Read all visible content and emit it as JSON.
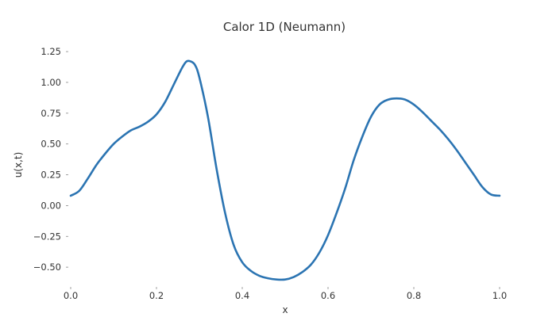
{
  "chart_data": {
    "type": "line",
    "title": "Calor 1D (Neumann)",
    "xlabel": "x",
    "ylabel": "u(x,t)",
    "xlim": [
      0.0,
      1.0
    ],
    "ylim": [
      -0.66,
      1.36
    ],
    "grid": false,
    "x_ticks": [
      {
        "value": 0.0,
        "label": "0.0"
      },
      {
        "value": 0.2,
        "label": "0.2"
      },
      {
        "value": 0.4,
        "label": "0.4"
      },
      {
        "value": 0.6,
        "label": "0.6"
      },
      {
        "value": 0.8,
        "label": "0.8"
      },
      {
        "value": 1.0,
        "label": "1.0"
      }
    ],
    "y_ticks": [
      {
        "value": -0.5,
        "label": "−0.50"
      },
      {
        "value": -0.25,
        "label": "−0.25"
      },
      {
        "value": 0.0,
        "label": "0.00"
      },
      {
        "value": 0.25,
        "label": "0.25"
      },
      {
        "value": 0.5,
        "label": "0.50"
      },
      {
        "value": 0.75,
        "label": "0.75"
      },
      {
        "value": 1.0,
        "label": "1.00"
      },
      {
        "value": 1.25,
        "label": "1.25"
      }
    ],
    "series": [
      {
        "color": "#2b74b2",
        "x": [
          0.0,
          0.02,
          0.04,
          0.06,
          0.08,
          0.1,
          0.12,
          0.14,
          0.16,
          0.18,
          0.2,
          0.22,
          0.24,
          0.26,
          0.27,
          0.28,
          0.29,
          0.3,
          0.32,
          0.34,
          0.36,
          0.38,
          0.4,
          0.42,
          0.44,
          0.46,
          0.48,
          0.5,
          0.52,
          0.54,
          0.56,
          0.58,
          0.6,
          0.62,
          0.64,
          0.66,
          0.68,
          0.7,
          0.72,
          0.74,
          0.76,
          0.78,
          0.8,
          0.82,
          0.84,
          0.86,
          0.88,
          0.9,
          0.92,
          0.94,
          0.96,
          0.98,
          1.0
        ],
        "y": [
          0.08,
          0.12,
          0.22,
          0.33,
          0.42,
          0.5,
          0.56,
          0.61,
          0.64,
          0.68,
          0.74,
          0.84,
          0.98,
          1.12,
          1.17,
          1.17,
          1.14,
          1.04,
          0.72,
          0.3,
          -0.06,
          -0.32,
          -0.46,
          -0.53,
          -0.57,
          -0.59,
          -0.6,
          -0.6,
          -0.58,
          -0.54,
          -0.48,
          -0.38,
          -0.24,
          -0.06,
          0.14,
          0.37,
          0.56,
          0.72,
          0.82,
          0.86,
          0.87,
          0.86,
          0.82,
          0.76,
          0.69,
          0.62,
          0.54,
          0.45,
          0.35,
          0.25,
          0.15,
          0.09,
          0.08
        ]
      }
    ]
  }
}
